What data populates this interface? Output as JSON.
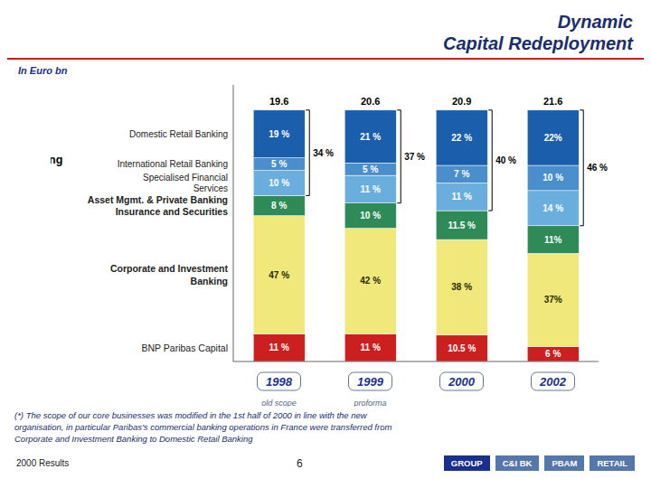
{
  "chart_data": {
    "type": "bar",
    "title": "Dynamic\nCapital Redeployment",
    "subtitle": "In Euro bn",
    "stacked": true,
    "data_labels": true,
    "tick_labels": "x",
    "grid": false,
    "categories": [
      "1998",
      "1999",
      "2000",
      "2002"
    ],
    "category_subtitles": [
      "old scope",
      "proforma",
      null,
      null
    ],
    "ylim": [
      0,
      110
    ],
    "series": [
      {
        "name": "BNP Paribas Capital",
        "color": "#CC2020",
        "values": [
          11,
          11,
          10.5,
          6
        ],
        "value_labels": [
          "11 %",
          "11 %",
          "10.5 %",
          "6 %"
        ]
      },
      {
        "name": "Corporate and Investment\nBanking",
        "color": "#F0E87A",
        "values": [
          47,
          42,
          38,
          37
        ],
        "value_labels": [
          "47 %",
          "42 %",
          "38 %",
          "37%"
        ]
      },
      {
        "name": "Asset Mgmt. & Private Banking\nInsurance and Securities",
        "color": "#2E8B57",
        "values": [
          8,
          10,
          11.5,
          11
        ],
        "value_labels": [
          "8 %",
          "10 %",
          "11.5 %",
          "11%"
        ]
      },
      {
        "name": "Specialised Financial\nServices",
        "color": "#6AAEDD",
        "values": [
          10,
          11,
          11,
          14
        ],
        "value_labels": [
          "10 %",
          "11 %",
          "11 %",
          "14 %"
        ]
      },
      {
        "name": "International Retail Banking",
        "color": "#4A8FCC",
        "values": [
          5,
          5,
          7,
          10
        ],
        "value_labels": [
          "5 %",
          "5 %",
          "7 %",
          "10 %"
        ]
      },
      {
        "name": "Domestic Retail Banking",
        "color": "#1B5EAB",
        "values": [
          19,
          21,
          22,
          22
        ],
        "value_labels": [
          "19 %",
          "21 %",
          "22 %",
          "22%"
        ]
      }
    ],
    "totals": [
      19.6,
      20.6,
      20.9,
      21.6
    ],
    "group": {
      "name": "Retail\nBanking",
      "series": [
        "Specialised Financial\nServices",
        "International Retail Banking",
        "Domestic Retail Banking"
      ],
      "values": [
        34,
        37,
        40,
        46
      ],
      "value_labels": [
        "34 %",
        "37 %",
        "40 %",
        "46 %"
      ]
    },
    "footnote": "(*) The scope of our core businesses was modified in the 1st half of 2000 in line with the new\norganisation, in particular Paribas's commercial banking operations in France were transferred from\nCorporate and Investment Banking to Domestic Retail Banking",
    "footer": [
      "2000 Results",
      "6"
    ],
    "tabs": [
      "GROUP",
      "C&I BK",
      "PBAM",
      "RETAIL"
    ]
  }
}
